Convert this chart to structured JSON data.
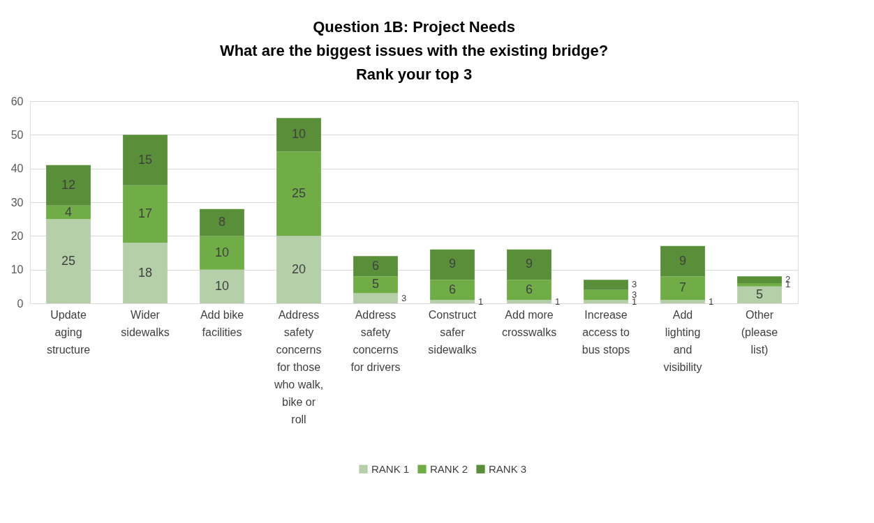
{
  "chart_data": {
    "type": "bar",
    "stacked": true,
    "title": "Question 1B: Project Needs",
    "subtitle": "What are the biggest issues with the existing bridge? Rank your top 3",
    "categories": [
      "Update aging structure",
      "Wider sidewalks",
      "Add bike facilities",
      "Address safety concerns for those who walk, bike or roll",
      "Address safety concerns for drivers",
      "Construct safer sidewalks",
      "Add more crosswalks",
      "Increase access to bus stops",
      "Add lighting and visibility",
      "Other (please list)"
    ],
    "series": [
      {
        "name": "RANK 1",
        "color": "#b5cfa9",
        "values": [
          25,
          18,
          10,
          20,
          3,
          1,
          1,
          1,
          1,
          5
        ]
      },
      {
        "name": "RANK 2",
        "color": "#70ad47",
        "values": [
          4,
          17,
          10,
          25,
          5,
          6,
          6,
          3,
          7,
          1
        ]
      },
      {
        "name": "RANK 3",
        "color": "#5a8f3a",
        "values": [
          12,
          15,
          8,
          10,
          6,
          9,
          9,
          3,
          9,
          2
        ]
      }
    ],
    "ylim": [
      0,
      60
    ],
    "yticks": [
      0,
      10,
      20,
      30,
      40,
      50,
      60
    ],
    "grid": "y",
    "legend": "bottom",
    "data_labels": true
  }
}
